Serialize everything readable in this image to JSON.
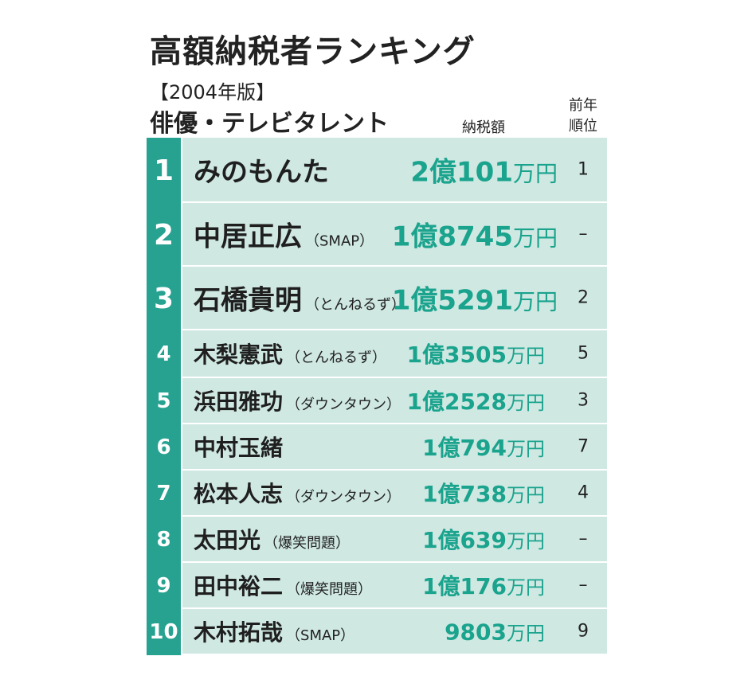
{
  "title": "高額納税者ランキング",
  "year": "【2004年版】",
  "category": "俳優・テレビタレント",
  "headers": {
    "tax": "納税額",
    "prev": "前年\n順位"
  },
  "unit": "万円",
  "rows": [
    {
      "rank": "1",
      "name": "みのもんた",
      "group": "",
      "amount_main": "2億101",
      "amount_unit": "万円",
      "prev": "1"
    },
    {
      "rank": "2",
      "name": "中居正広",
      "group": "（SMAP）",
      "amount_main": "1億8745",
      "amount_unit": "万円",
      "prev": "–"
    },
    {
      "rank": "3",
      "name": "石橋貴明",
      "group": "（とんねるず）",
      "amount_main": "1億5291",
      "amount_unit": "万円",
      "prev": "2"
    },
    {
      "rank": "4",
      "name": "木梨憲武",
      "group": "（とんねるず）",
      "amount_main": "1億3505",
      "amount_unit": "万円",
      "prev": "5"
    },
    {
      "rank": "5",
      "name": "浜田雅功",
      "group": "（ダウンタウン）",
      "amount_main": "1億2528",
      "amount_unit": "万円",
      "prev": "3"
    },
    {
      "rank": "6",
      "name": "中村玉緒",
      "group": "",
      "amount_main": "1億794",
      "amount_unit": "万円",
      "prev": "7"
    },
    {
      "rank": "7",
      "name": "松本人志",
      "group": "（ダウンタウン）",
      "amount_main": "1億738",
      "amount_unit": "万円",
      "prev": "4"
    },
    {
      "rank": "8",
      "name": "太田光",
      "group": "（爆笑問題）",
      "amount_main": "1億639",
      "amount_unit": "万円",
      "prev": "–"
    },
    {
      "rank": "9",
      "name": "田中裕二",
      "group": "（爆笑問題）",
      "amount_main": "1億176",
      "amount_unit": "万円",
      "prev": "–"
    },
    {
      "rank": "10",
      "name": "木村拓哉",
      "group": "（SMAP）",
      "amount_main": "9803",
      "amount_unit": "万円",
      "prev": "9"
    }
  ]
}
